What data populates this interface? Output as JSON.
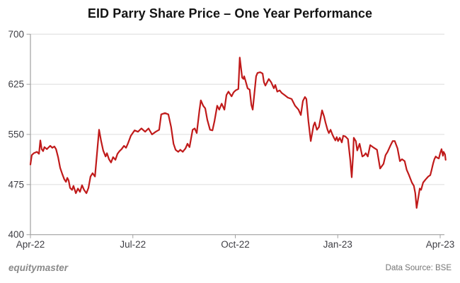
{
  "title": "EID Parry Share Price – One Year Performance",
  "footer": {
    "brand": "equitymaster",
    "source": "Data Source: BSE"
  },
  "colors": {
    "background": "#ffffff",
    "line": "#c01a1a",
    "grid": "#dcdcdc",
    "axis": "#a0a0a0",
    "tick_label": "#3e3e44",
    "title": "#141414",
    "brand": "#8a8a8a",
    "source": "#757575"
  },
  "chart_data": {
    "type": "line",
    "title": "EID Parry Share Price – One Year Performance",
    "series_name": "EID Parry share price (BSE)",
    "x_unit": "months since Apr-2022",
    "xlim": [
      0,
      12.2
    ],
    "ylim": [
      400,
      700
    ],
    "y_ticks": [
      400,
      475,
      550,
      625,
      700
    ],
    "x_ticks": [
      {
        "m": 0,
        "label": "Apr-22"
      },
      {
        "m": 3,
        "label": "Jul-22"
      },
      {
        "m": 6,
        "label": "Oct-22"
      },
      {
        "m": 9,
        "label": "Jan-23"
      },
      {
        "m": 12,
        "label": "Apr-23"
      }
    ],
    "grid": "horizontal",
    "legend": "none",
    "points": [
      [
        0.0,
        505
      ],
      [
        0.04,
        519
      ],
      [
        0.1,
        522
      ],
      [
        0.19,
        524
      ],
      [
        0.25,
        521
      ],
      [
        0.29,
        541
      ],
      [
        0.33,
        528
      ],
      [
        0.37,
        525
      ],
      [
        0.41,
        531
      ],
      [
        0.48,
        528
      ],
      [
        0.54,
        531
      ],
      [
        0.58,
        533
      ],
      [
        0.64,
        530
      ],
      [
        0.7,
        532
      ],
      [
        0.75,
        528
      ],
      [
        0.81,
        516
      ],
      [
        0.87,
        500
      ],
      [
        0.93,
        491
      ],
      [
        0.99,
        483
      ],
      [
        1.04,
        479
      ],
      [
        1.08,
        485
      ],
      [
        1.12,
        481
      ],
      [
        1.16,
        470
      ],
      [
        1.22,
        467
      ],
      [
        1.26,
        473
      ],
      [
        1.33,
        462
      ],
      [
        1.39,
        469
      ],
      [
        1.45,
        464
      ],
      [
        1.51,
        474
      ],
      [
        1.57,
        467
      ],
      [
        1.64,
        462
      ],
      [
        1.7,
        470
      ],
      [
        1.76,
        487
      ],
      [
        1.82,
        492
      ],
      [
        1.89,
        487
      ],
      [
        1.95,
        522
      ],
      [
        2.01,
        557
      ],
      [
        2.07,
        540
      ],
      [
        2.13,
        526
      ],
      [
        2.2,
        517
      ],
      [
        2.24,
        522
      ],
      [
        2.3,
        513
      ],
      [
        2.36,
        508
      ],
      [
        2.42,
        516
      ],
      [
        2.49,
        512
      ],
      [
        2.55,
        521
      ],
      [
        2.61,
        525
      ],
      [
        2.67,
        528
      ],
      [
        2.74,
        533
      ],
      [
        2.8,
        530
      ],
      [
        2.86,
        537
      ],
      [
        2.94,
        548
      ],
      [
        3.05,
        556
      ],
      [
        3.15,
        554
      ],
      [
        3.25,
        559
      ],
      [
        3.36,
        554
      ],
      [
        3.46,
        559
      ],
      [
        3.56,
        550
      ],
      [
        3.67,
        554
      ],
      [
        3.77,
        557
      ],
      [
        3.83,
        580
      ],
      [
        3.94,
        582
      ],
      [
        4.04,
        580
      ],
      [
        4.12,
        561
      ],
      [
        4.19,
        536
      ],
      [
        4.25,
        527
      ],
      [
        4.33,
        524
      ],
      [
        4.39,
        527
      ],
      [
        4.46,
        524
      ],
      [
        4.54,
        529
      ],
      [
        4.6,
        536
      ],
      [
        4.66,
        531
      ],
      [
        4.75,
        557
      ],
      [
        4.81,
        559
      ],
      [
        4.87,
        552
      ],
      [
        4.95,
        586
      ],
      [
        4.99,
        601
      ],
      [
        5.06,
        593
      ],
      [
        5.12,
        589
      ],
      [
        5.18,
        572
      ],
      [
        5.26,
        557
      ],
      [
        5.33,
        556
      ],
      [
        5.39,
        570
      ],
      [
        5.47,
        593
      ],
      [
        5.53,
        587
      ],
      [
        5.6,
        596
      ],
      [
        5.68,
        587
      ],
      [
        5.74,
        609
      ],
      [
        5.8,
        614
      ],
      [
        5.89,
        607
      ],
      [
        5.95,
        613
      ],
      [
        6.01,
        616
      ],
      [
        6.09,
        618
      ],
      [
        6.13,
        665
      ],
      [
        6.2,
        635
      ],
      [
        6.24,
        633
      ],
      [
        6.26,
        637
      ],
      [
        6.3,
        630
      ],
      [
        6.36,
        619
      ],
      [
        6.42,
        617
      ],
      [
        6.47,
        594
      ],
      [
        6.51,
        587
      ],
      [
        6.57,
        617
      ],
      [
        6.61,
        637
      ],
      [
        6.65,
        642
      ],
      [
        6.73,
        643
      ],
      [
        6.8,
        641
      ],
      [
        6.84,
        628
      ],
      [
        6.88,
        623
      ],
      [
        6.98,
        633
      ],
      [
        7.05,
        628
      ],
      [
        7.13,
        619
      ],
      [
        7.17,
        624
      ],
      [
        7.23,
        614
      ],
      [
        7.3,
        616
      ],
      [
        7.36,
        612
      ],
      [
        7.44,
        609
      ],
      [
        7.54,
        605
      ],
      [
        7.65,
        603
      ],
      [
        7.75,
        593
      ],
      [
        7.85,
        587
      ],
      [
        7.92,
        579
      ],
      [
        7.98,
        600
      ],
      [
        8.04,
        606
      ],
      [
        8.08,
        603
      ],
      [
        8.14,
        570
      ],
      [
        8.21,
        540
      ],
      [
        8.29,
        563
      ],
      [
        8.33,
        568
      ],
      [
        8.39,
        557
      ],
      [
        8.45,
        561
      ],
      [
        8.54,
        586
      ],
      [
        8.6,
        577
      ],
      [
        8.64,
        568
      ],
      [
        8.7,
        557
      ],
      [
        8.74,
        552
      ],
      [
        8.79,
        557
      ],
      [
        8.85,
        549
      ],
      [
        8.89,
        545
      ],
      [
        8.93,
        541
      ],
      [
        8.97,
        546
      ],
      [
        9.01,
        540
      ],
      [
        9.06,
        545
      ],
      [
        9.12,
        538
      ],
      [
        9.16,
        548
      ],
      [
        9.22,
        547
      ],
      [
        9.3,
        543
      ],
      [
        9.37,
        510
      ],
      [
        9.41,
        486
      ],
      [
        9.45,
        520
      ],
      [
        9.47,
        545
      ],
      [
        9.53,
        540
      ],
      [
        9.57,
        526
      ],
      [
        9.64,
        536
      ],
      [
        9.72,
        517
      ],
      [
        9.78,
        519
      ],
      [
        9.82,
        522
      ],
      [
        9.88,
        517
      ],
      [
        9.95,
        534
      ],
      [
        10.03,
        531
      ],
      [
        10.09,
        529
      ],
      [
        10.15,
        527
      ],
      [
        10.24,
        499
      ],
      [
        10.34,
        506
      ],
      [
        10.4,
        519
      ],
      [
        10.46,
        524
      ],
      [
        10.55,
        534
      ],
      [
        10.61,
        540
      ],
      [
        10.67,
        540
      ],
      [
        10.75,
        529
      ],
      [
        10.82,
        510
      ],
      [
        10.88,
        513
      ],
      [
        10.96,
        510
      ],
      [
        11.02,
        497
      ],
      [
        11.08,
        490
      ],
      [
        11.17,
        478
      ],
      [
        11.23,
        473
      ],
      [
        11.27,
        462
      ],
      [
        11.31,
        440
      ],
      [
        11.38,
        462
      ],
      [
        11.4,
        469
      ],
      [
        11.44,
        467
      ],
      [
        11.5,
        478
      ],
      [
        11.58,
        483
      ],
      [
        11.65,
        487
      ],
      [
        11.71,
        489
      ],
      [
        11.75,
        497
      ],
      [
        11.79,
        506
      ],
      [
        11.83,
        513
      ],
      [
        11.87,
        517
      ],
      [
        11.92,
        515
      ],
      [
        11.96,
        514
      ],
      [
        12.0,
        522
      ],
      [
        12.04,
        528
      ],
      [
        12.08,
        518
      ],
      [
        12.1,
        524
      ],
      [
        12.14,
        520
      ],
      [
        12.16,
        512
      ]
    ]
  }
}
